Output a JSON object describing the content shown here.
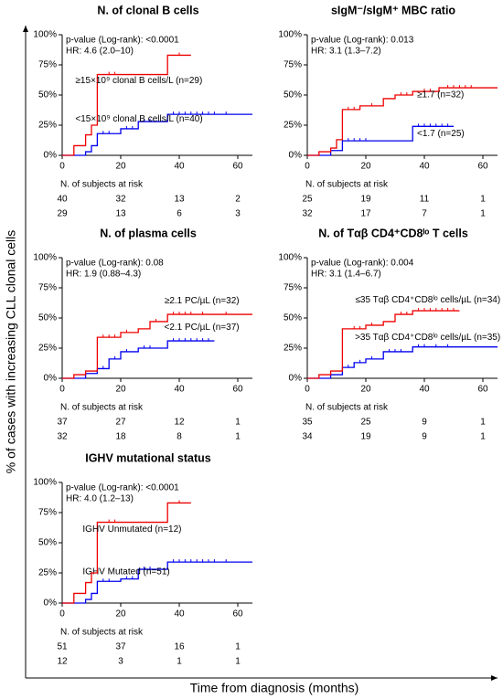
{
  "y_label": "% of cases with increasing CLL clonal cells",
  "x_label": "Time from diagnosis (months)",
  "chart_data": [
    {
      "type": "step",
      "title": "N. of clonal B cells",
      "annotations": [
        "p-value (Log-rank): <0.0001",
        "HR: 4.6 (2.0–10)"
      ],
      "xlim": [
        0,
        65
      ],
      "ylim": [
        0,
        100
      ],
      "xticks": [
        0,
        20,
        40,
        60
      ],
      "yticks": [
        {
          "value": 0,
          "label": "0%"
        },
        {
          "value": 25,
          "label": "25%"
        },
        {
          "value": 50,
          "label": "50%"
        },
        {
          "value": 75,
          "label": "75%"
        },
        {
          "value": 100,
          "label": "100%"
        }
      ],
      "risk_title": "N. of subjects at risk",
      "series": [
        {
          "name": "<15×10⁹ clonal B cells/L (n=40)",
          "color": "#0000ee",
          "x": [
            0,
            8,
            10,
            12,
            20,
            26,
            36,
            65
          ],
          "values": [
            0,
            3,
            8,
            18,
            22,
            28,
            34,
            34
          ],
          "censored": [
            14,
            16,
            22,
            24,
            28,
            30,
            38,
            40,
            42,
            44,
            46,
            48,
            50,
            52,
            56
          ],
          "at_risk": [
            40,
            32,
            13,
            2
          ]
        },
        {
          "name": "≥15×10⁹ clonal B cells/L (n=29)",
          "color": "#ee0000",
          "x": [
            0,
            4,
            8,
            10,
            12,
            36,
            44
          ],
          "values": [
            0,
            8,
            17,
            25,
            67,
            83,
            83
          ],
          "censored": [
            16,
            18,
            40
          ],
          "at_risk": [
            29,
            13,
            6,
            3
          ]
        }
      ]
    },
    {
      "type": "step",
      "title": "sIgM⁻/sIgM⁺ MBC ratio",
      "annotations": [
        "p-value (Log-rank): 0.013",
        "HR: 3.1 (1.3–7.2)"
      ],
      "xlim": [
        0,
        65
      ],
      "ylim": [
        0,
        100
      ],
      "xticks": [
        0,
        20,
        40,
        60
      ],
      "yticks": [
        {
          "value": 0,
          "label": "0%"
        },
        {
          "value": 25,
          "label": "25%"
        },
        {
          "value": 50,
          "label": "50%"
        },
        {
          "value": 75,
          "label": "75%"
        },
        {
          "value": 100,
          "label": "100%"
        }
      ],
      "risk_title": "N. of subjects at risk",
      "series": [
        {
          "name": "<1.7 (n=25)",
          "color": "#0000ee",
          "x": [
            0,
            8,
            12,
            36,
            50
          ],
          "values": [
            0,
            4,
            12,
            24,
            24
          ],
          "censored": [
            14,
            16,
            18,
            20,
            38,
            40,
            42,
            44,
            46,
            48
          ],
          "at_risk": [
            25,
            19,
            11,
            1
          ]
        },
        {
          "name": "≥1.7 (n=32)",
          "color": "#ee0000",
          "x": [
            0,
            4,
            8,
            10,
            12,
            18,
            26,
            30,
            36,
            45,
            65
          ],
          "values": [
            0,
            3,
            6,
            13,
            38,
            41,
            47,
            50,
            53,
            56,
            56
          ],
          "censored": [
            14,
            16,
            22,
            32,
            34,
            40,
            42,
            48,
            50,
            52,
            54,
            56
          ],
          "at_risk": [
            32,
            17,
            7,
            1
          ]
        }
      ]
    },
    {
      "type": "step",
      "title": "N. of plasma cells",
      "annotations": [
        "p-value (Log-rank): 0.08",
        "HR: 1.9 (0.88–4.3)"
      ],
      "xlim": [
        0,
        65
      ],
      "ylim": [
        0,
        100
      ],
      "xticks": [
        0,
        20,
        40,
        60
      ],
      "yticks": [
        {
          "value": 0,
          "label": "0%"
        },
        {
          "value": 25,
          "label": "25%"
        },
        {
          "value": 50,
          "label": "50%"
        },
        {
          "value": 75,
          "label": "75%"
        },
        {
          "value": 100,
          "label": "100%"
        }
      ],
      "risk_title": "N. of subjects at risk",
      "series": [
        {
          "name": "<2.1 PC/µL (n=37)",
          "color": "#0000ee",
          "x": [
            0,
            8,
            12,
            16,
            20,
            26,
            36,
            52
          ],
          "values": [
            0,
            4,
            8,
            16,
            22,
            25,
            31,
            31
          ],
          "censored": [
            14,
            18,
            22,
            28,
            30,
            38,
            40,
            42,
            44,
            46,
            48,
            50
          ],
          "at_risk": [
            37,
            27,
            12,
            1
          ]
        },
        {
          "name": "≥2.1 PC/µL (n=32)",
          "color": "#ee0000",
          "x": [
            0,
            4,
            8,
            12,
            20,
            26,
            30,
            36,
            65
          ],
          "values": [
            0,
            3,
            6,
            34,
            38,
            41,
            47,
            53,
            53
          ],
          "censored": [
            14,
            16,
            18,
            22,
            32,
            38,
            40,
            42,
            44,
            48,
            56
          ],
          "at_risk": [
            32,
            18,
            8,
            1
          ]
        }
      ]
    },
    {
      "type": "step",
      "title": "N. of Tαβ CD4⁺CD8ˡᵒ T cells",
      "annotations": [
        "p-value (Log-rank): 0.004",
        "HR: 3.1 (1.4–6.7)"
      ],
      "xlim": [
        0,
        65
      ],
      "ylim": [
        0,
        100
      ],
      "xticks": [
        0,
        20,
        40,
        60
      ],
      "yticks": [
        {
          "value": 0,
          "label": "0%"
        },
        {
          "value": 25,
          "label": "25%"
        },
        {
          "value": 50,
          "label": "50%"
        },
        {
          "value": 75,
          "label": "75%"
        },
        {
          "value": 100,
          "label": "100%"
        }
      ],
      "risk_title": "N. of subjects at risk",
      "series": [
        {
          "name": ">35 Tαβ CD4⁺CD8ˡᵒ cells/µL (n=35)",
          "color": "#0000ee",
          "x": [
            0,
            8,
            12,
            16,
            20,
            26,
            36,
            65
          ],
          "values": [
            0,
            3,
            9,
            13,
            16,
            22,
            26,
            26
          ],
          "censored": [
            14,
            18,
            22,
            28,
            30,
            32,
            38,
            40,
            44,
            48
          ],
          "at_risk": [
            35,
            25,
            9,
            1
          ]
        },
        {
          "name": "≤35 Tαβ CD4⁺CD8ˡᵒ cells/µL (n=34)",
          "color": "#ee0000",
          "x": [
            0,
            4,
            8,
            12,
            20,
            26,
            30,
            36,
            52
          ],
          "values": [
            0,
            3,
            6,
            41,
            44,
            47,
            53,
            56,
            56
          ],
          "censored": [
            16,
            18,
            22,
            32,
            34,
            38,
            40,
            42,
            44,
            46,
            48,
            50
          ],
          "at_risk": [
            34,
            19,
            9,
            1
          ]
        }
      ]
    },
    {
      "type": "step",
      "title": "IGHV mutational status",
      "annotations": [
        "p-value (Log-rank): <0.0001",
        "HR: 4.0 (1.2–13)"
      ],
      "xlim": [
        0,
        65
      ],
      "ylim": [
        0,
        100
      ],
      "xticks": [
        0,
        20,
        40,
        60
      ],
      "yticks": [
        {
          "value": 0,
          "label": "0%"
        },
        {
          "value": 25,
          "label": "25%"
        },
        {
          "value": 50,
          "label": "50%"
        },
        {
          "value": 75,
          "label": "75%"
        },
        {
          "value": 100,
          "label": "100%"
        }
      ],
      "risk_title": "N. of subjects at risk",
      "series": [
        {
          "name": "IGHV Mutated (n=51)",
          "color": "#0000ee",
          "x": [
            0,
            8,
            10,
            12,
            20,
            26,
            36,
            65
          ],
          "values": [
            0,
            3,
            8,
            18,
            20,
            28,
            34,
            34
          ],
          "censored": [
            14,
            16,
            22,
            24,
            28,
            30,
            38,
            40,
            42,
            44,
            46,
            48,
            50,
            52,
            56
          ],
          "at_risk": [
            51,
            37,
            16,
            1
          ]
        },
        {
          "name": "IGHV Unmutated (n=12)",
          "color": "#ee0000",
          "x": [
            0,
            4,
            8,
            10,
            12,
            36,
            44
          ],
          "values": [
            0,
            8,
            17,
            25,
            67,
            83,
            83
          ],
          "censored": [
            16,
            18,
            40
          ],
          "at_risk": [
            12,
            3,
            1,
            1
          ]
        }
      ]
    }
  ]
}
